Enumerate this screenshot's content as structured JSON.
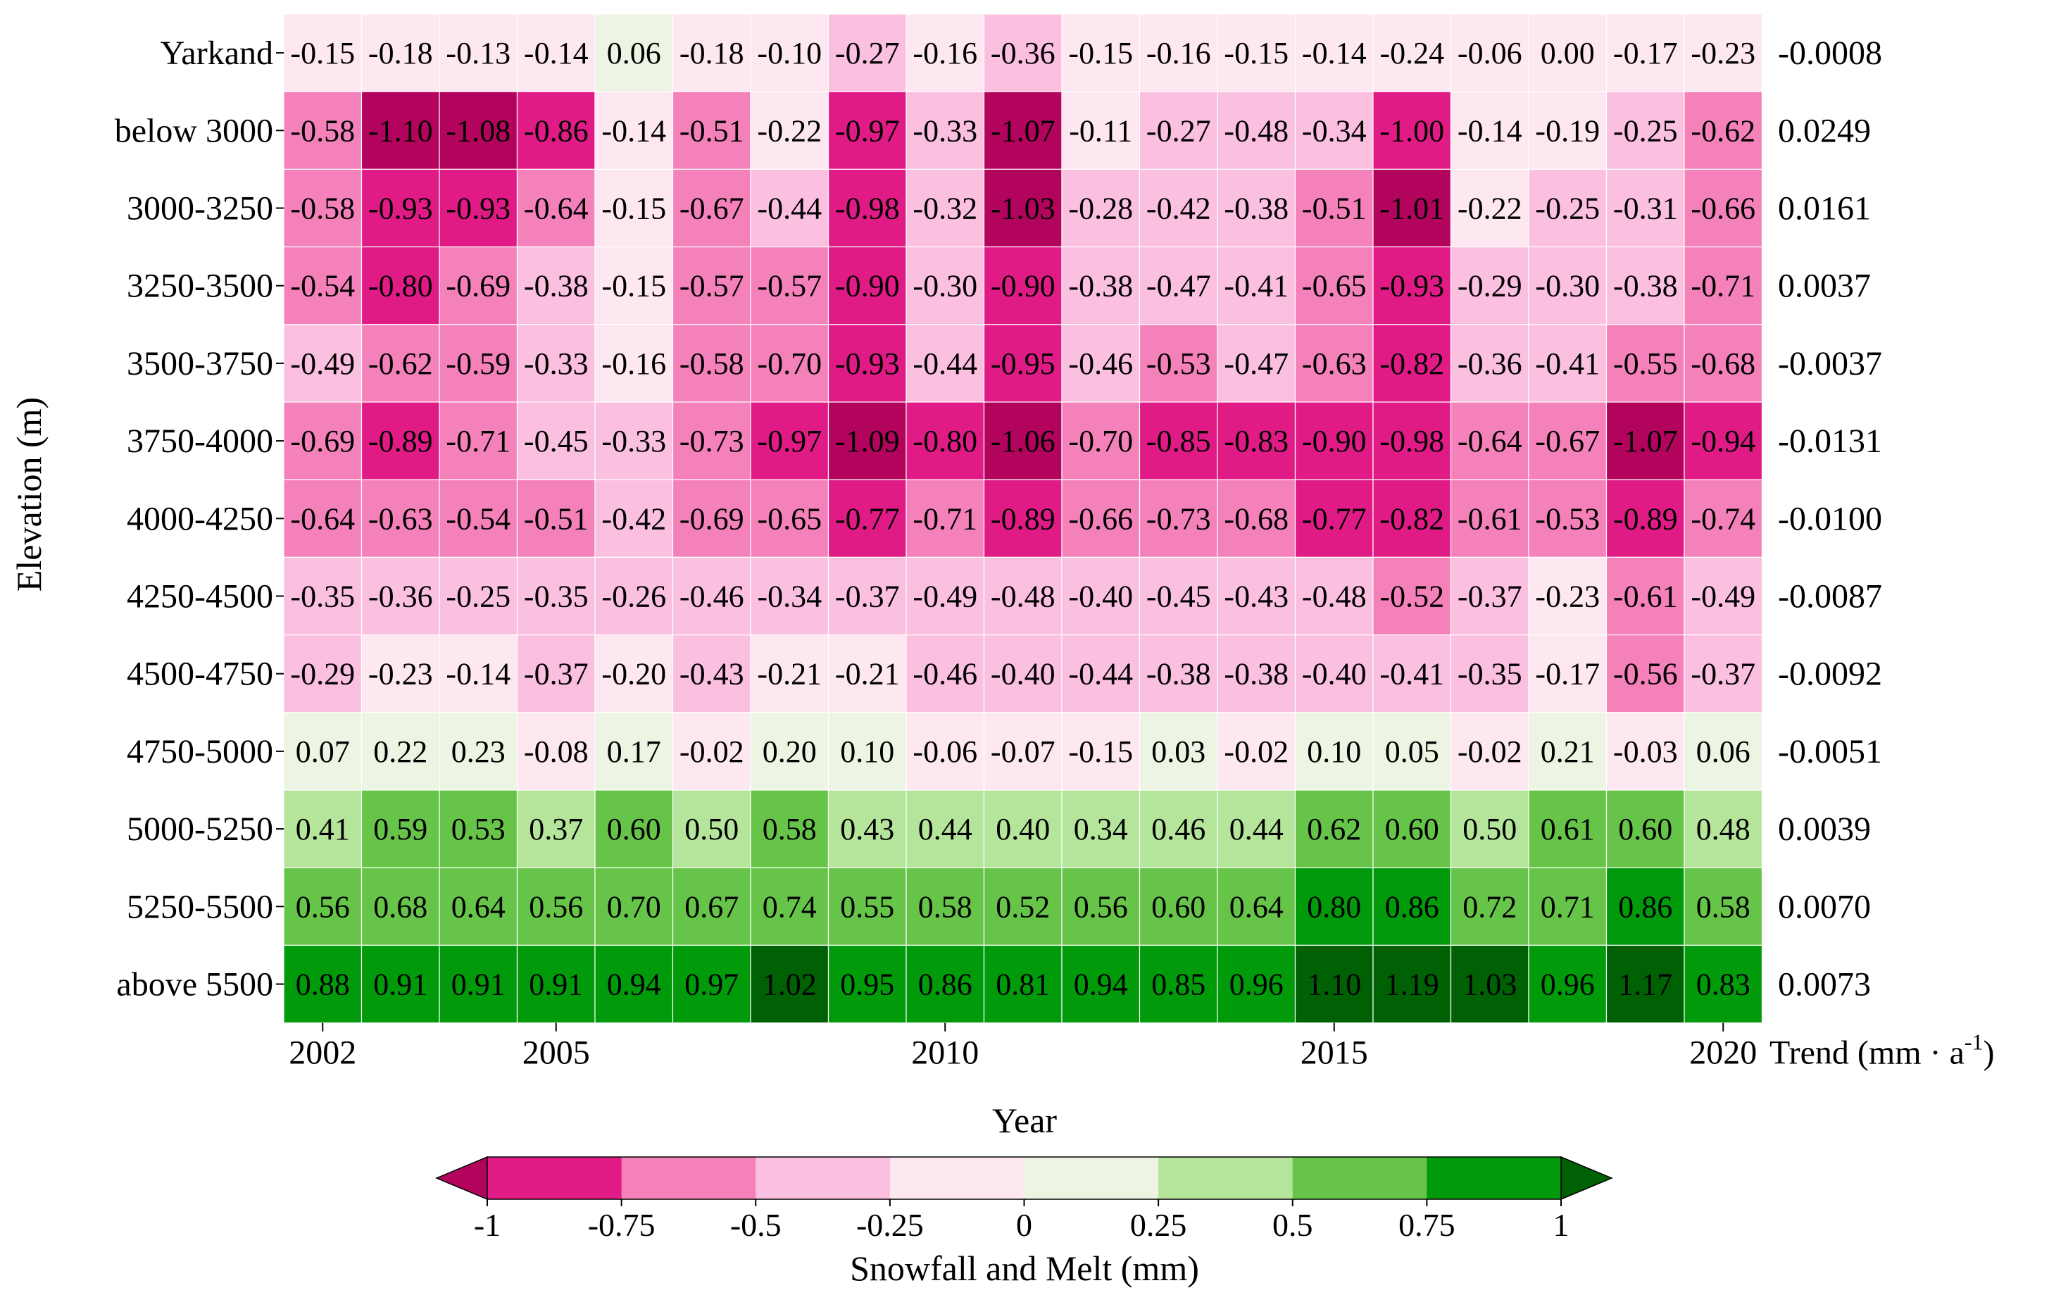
{
  "chart_data": {
    "type": "heatmap",
    "xlabel": "Year",
    "ylabel": "Elevation (m)",
    "years": [
      2002,
      2003,
      2004,
      2005,
      2006,
      2007,
      2008,
      2009,
      2010,
      2011,
      2012,
      2013,
      2014,
      2015,
      2016,
      2017,
      2018,
      2019,
      2020
    ],
    "x_ticks": [
      "2002",
      "2005",
      "2010",
      "2015",
      "2020"
    ],
    "rows": [
      {
        "label": "Yarkand",
        "values": [
          "-0.15",
          "-0.18",
          "-0.13",
          "-0.14",
          "0.06",
          "-0.18",
          "-0.10",
          "-0.27",
          "-0.16",
          "-0.36",
          "-0.15",
          "-0.16",
          "-0.15",
          "-0.14",
          "-0.24",
          "-0.06",
          "0.00",
          "-0.17",
          "-0.23"
        ],
        "trend": "-0.0008"
      },
      {
        "label": "below 3000",
        "values": [
          "-0.58",
          "-1.10",
          "-1.08",
          "-0.86",
          "-0.14",
          "-0.51",
          "-0.22",
          "-0.97",
          "-0.33",
          "-1.07",
          "-0.11",
          "-0.27",
          "-0.48",
          "-0.34",
          "-1.00",
          "-0.14",
          "-0.19",
          "-0.25",
          "-0.62"
        ],
        "trend": "0.0249"
      },
      {
        "label": "3000-3250",
        "values": [
          "-0.58",
          "-0.93",
          "-0.93",
          "-0.64",
          "-0.15",
          "-0.67",
          "-0.44",
          "-0.98",
          "-0.32",
          "-1.03",
          "-0.28",
          "-0.42",
          "-0.38",
          "-0.51",
          "-1.01",
          "-0.22",
          "-0.25",
          "-0.31",
          "-0.66"
        ],
        "trend": "0.0161"
      },
      {
        "label": "3250-3500",
        "values": [
          "-0.54",
          "-0.80",
          "-0.69",
          "-0.38",
          "-0.15",
          "-0.57",
          "-0.57",
          "-0.90",
          "-0.30",
          "-0.90",
          "-0.38",
          "-0.47",
          "-0.41",
          "-0.65",
          "-0.93",
          "-0.29",
          "-0.30",
          "-0.38",
          "-0.71"
        ],
        "trend": "0.0037"
      },
      {
        "label": "3500-3750",
        "values": [
          "-0.49",
          "-0.62",
          "-0.59",
          "-0.33",
          "-0.16",
          "-0.58",
          "-0.70",
          "-0.93",
          "-0.44",
          "-0.95",
          "-0.46",
          "-0.53",
          "-0.47",
          "-0.63",
          "-0.82",
          "-0.36",
          "-0.41",
          "-0.55",
          "-0.68"
        ],
        "trend": "-0.0037"
      },
      {
        "label": "3750-4000",
        "values": [
          "-0.69",
          "-0.89",
          "-0.71",
          "-0.45",
          "-0.33",
          "-0.73",
          "-0.97",
          "-1.09",
          "-0.80",
          "-1.06",
          "-0.70",
          "-0.85",
          "-0.83",
          "-0.90",
          "-0.98",
          "-0.64",
          "-0.67",
          "-1.07",
          "-0.94"
        ],
        "trend": "-0.0131"
      },
      {
        "label": "4000-4250",
        "values": [
          "-0.64",
          "-0.63",
          "-0.54",
          "-0.51",
          "-0.42",
          "-0.69",
          "-0.65",
          "-0.77",
          "-0.71",
          "-0.89",
          "-0.66",
          "-0.73",
          "-0.68",
          "-0.77",
          "-0.82",
          "-0.61",
          "-0.53",
          "-0.89",
          "-0.74"
        ],
        "trend": "-0.0100"
      },
      {
        "label": "4250-4500",
        "values": [
          "-0.35",
          "-0.36",
          "-0.25",
          "-0.35",
          "-0.26",
          "-0.46",
          "-0.34",
          "-0.37",
          "-0.49",
          "-0.48",
          "-0.40",
          "-0.45",
          "-0.43",
          "-0.48",
          "-0.52",
          "-0.37",
          "-0.23",
          "-0.61",
          "-0.49"
        ],
        "trend": "-0.0087"
      },
      {
        "label": "4500-4750",
        "values": [
          "-0.29",
          "-0.23",
          "-0.14",
          "-0.37",
          "-0.20",
          "-0.43",
          "-0.21",
          "-0.21",
          "-0.46",
          "-0.40",
          "-0.44",
          "-0.38",
          "-0.38",
          "-0.40",
          "-0.41",
          "-0.35",
          "-0.17",
          "-0.56",
          "-0.37"
        ],
        "trend": "-0.0092"
      },
      {
        "label": "4750-5000",
        "values": [
          "0.07",
          "0.22",
          "0.23",
          "-0.08",
          "0.17",
          "-0.02",
          "0.20",
          "0.10",
          "-0.06",
          "-0.07",
          "-0.15",
          "0.03",
          "-0.02",
          "0.10",
          "0.05",
          "-0.02",
          "0.21",
          "-0.03",
          "0.06"
        ],
        "trend": "-0.0051"
      },
      {
        "label": "5000-5250",
        "values": [
          "0.41",
          "0.59",
          "0.53",
          "0.37",
          "0.60",
          "0.50",
          "0.58",
          "0.43",
          "0.44",
          "0.40",
          "0.34",
          "0.46",
          "0.44",
          "0.62",
          "0.60",
          "0.50",
          "0.61",
          "0.60",
          "0.48"
        ],
        "trend": "0.0039"
      },
      {
        "label": "5250-5500",
        "values": [
          "0.56",
          "0.68",
          "0.64",
          "0.56",
          "0.70",
          "0.67",
          "0.74",
          "0.55",
          "0.58",
          "0.52",
          "0.56",
          "0.60",
          "0.64",
          "0.80",
          "0.86",
          "0.72",
          "0.71",
          "0.86",
          "0.58"
        ],
        "trend": "0.0070"
      },
      {
        "label": "above 5500",
        "values": [
          "0.88",
          "0.91",
          "0.91",
          "0.91",
          "0.94",
          "0.97",
          "1.02",
          "0.95",
          "0.86",
          "0.81",
          "0.94",
          "0.85",
          "0.96",
          "1.10",
          "1.19",
          "1.03",
          "0.96",
          "1.17",
          "0.83"
        ],
        "trend": "0.0073"
      }
    ],
    "trend_header": {
      "prefix": "Trend (mm · a",
      "superscript": "-1",
      "suffix": ")"
    },
    "colorbar": {
      "title": "Snowfall and Melt (mm)",
      "ticks": [
        "-1",
        "-0.75",
        "-0.5",
        "-0.25",
        "0",
        "0.25",
        "0.5",
        "0.75",
        "1"
      ],
      "boundaries": [
        -1,
        -0.75,
        -0.5,
        -0.25,
        0,
        0.25,
        0.5,
        0.75,
        1
      ],
      "colors": [
        "#e01b86",
        "#f581bb",
        "#fbbfdf",
        "#fde7f1",
        "#ecf5e3",
        "#b5e59b",
        "#66c449",
        "#009a0a"
      ],
      "under_color": "#b2045d",
      "over_color": "#006004",
      "extend": "both"
    }
  }
}
